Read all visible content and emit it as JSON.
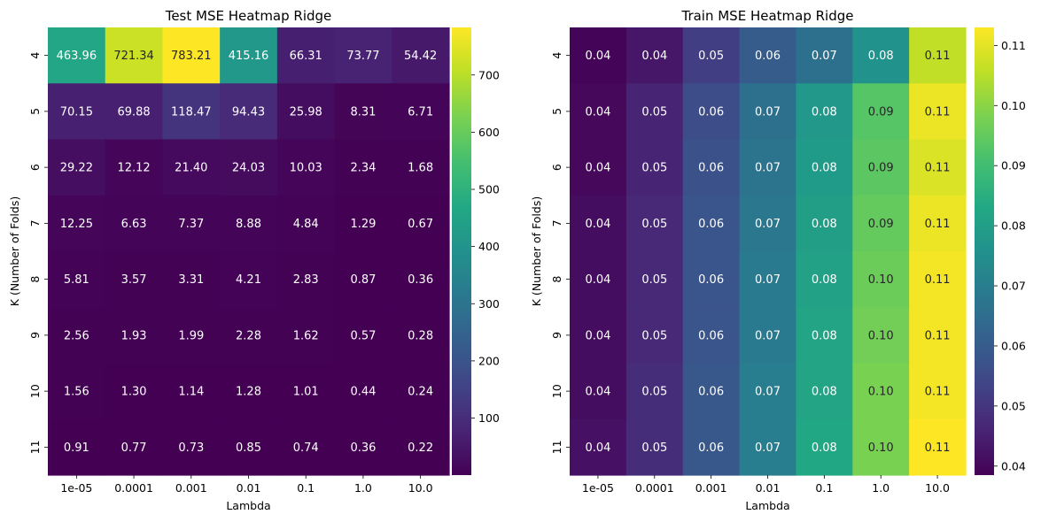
{
  "chart_data": [
    {
      "type": "heatmap",
      "title": "Test MSE Heatmap Ridge",
      "xlabel": "Lambda",
      "ylabel": "K (Number of Folds)",
      "x_categories": [
        "1e-05",
        "0.0001",
        "0.001",
        "0.01",
        "0.1",
        "1.0",
        "10.0"
      ],
      "y_categories": [
        "4",
        "5",
        "6",
        "7",
        "8",
        "9",
        "10",
        "11"
      ],
      "values": [
        [
          463.96,
          721.34,
          783.21,
          415.16,
          66.31,
          73.77,
          54.42
        ],
        [
          70.15,
          69.88,
          118.47,
          94.43,
          25.98,
          8.31,
          6.71
        ],
        [
          29.22,
          12.12,
          21.4,
          24.03,
          10.03,
          2.34,
          1.68
        ],
        [
          12.25,
          6.63,
          7.37,
          8.88,
          4.84,
          1.29,
          0.67
        ],
        [
          5.81,
          3.57,
          3.31,
          4.21,
          2.83,
          0.87,
          0.36
        ],
        [
          2.56,
          1.93,
          1.99,
          2.28,
          1.62,
          0.57,
          0.28
        ],
        [
          1.56,
          1.3,
          1.14,
          1.28,
          1.01,
          0.44,
          0.24
        ],
        [
          0.91,
          0.77,
          0.73,
          0.85,
          0.74,
          0.36,
          0.22
        ]
      ],
      "colormap": "viridis",
      "vmin": 0.22,
      "vmax": 783.21,
      "colorbar_ticks": [
        100,
        200,
        300,
        400,
        500,
        600,
        700
      ],
      "annotation_format": "2 decimals"
    },
    {
      "type": "heatmap",
      "title": "Train MSE Heatmap Ridge",
      "xlabel": "Lambda",
      "ylabel": "K (Number of Folds)",
      "x_categories": [
        "1e-05",
        "0.0001",
        "0.001",
        "0.01",
        "0.1",
        "1.0",
        "10.0"
      ],
      "y_categories": [
        "4",
        "5",
        "6",
        "7",
        "8",
        "9",
        "10",
        "11"
      ],
      "values": [
        [
          0.0392,
          0.043,
          0.052,
          0.06,
          0.066,
          0.076,
          0.106
        ],
        [
          0.04,
          0.046,
          0.056,
          0.066,
          0.078,
          0.093,
          0.111
        ],
        [
          0.04,
          0.046,
          0.057,
          0.067,
          0.079,
          0.094,
          0.109
        ],
        [
          0.041,
          0.047,
          0.058,
          0.068,
          0.08,
          0.095,
          0.111
        ],
        [
          0.041,
          0.047,
          0.058,
          0.069,
          0.081,
          0.096,
          0.112
        ],
        [
          0.041,
          0.047,
          0.058,
          0.069,
          0.082,
          0.097,
          0.112
        ],
        [
          0.041,
          0.048,
          0.059,
          0.07,
          0.082,
          0.098,
          0.112
        ],
        [
          0.042,
          0.048,
          0.059,
          0.07,
          0.083,
          0.098,
          0.113
        ]
      ],
      "labels": [
        [
          "0.04",
          "0.04",
          "0.05",
          "0.06",
          "0.07",
          "0.08",
          "0.11"
        ],
        [
          "0.04",
          "0.05",
          "0.06",
          "0.07",
          "0.08",
          "0.09",
          "0.11"
        ],
        [
          "0.04",
          "0.05",
          "0.06",
          "0.07",
          "0.08",
          "0.09",
          "0.11"
        ],
        [
          "0.04",
          "0.05",
          "0.06",
          "0.07",
          "0.08",
          "0.09",
          "0.11"
        ],
        [
          "0.04",
          "0.05",
          "0.06",
          "0.07",
          "0.08",
          "0.10",
          "0.11"
        ],
        [
          "0.04",
          "0.05",
          "0.06",
          "0.07",
          "0.08",
          "0.10",
          "0.11"
        ],
        [
          "0.04",
          "0.05",
          "0.06",
          "0.07",
          "0.08",
          "0.10",
          "0.11"
        ],
        [
          "0.04",
          "0.05",
          "0.06",
          "0.07",
          "0.08",
          "0.10",
          "0.11"
        ]
      ],
      "colormap": "viridis",
      "vmin": 0.0385,
      "vmax": 0.113,
      "colorbar_ticks": [
        0.04,
        0.05,
        0.06,
        0.07,
        0.08,
        0.09,
        0.1,
        0.11
      ],
      "colorbar_tick_labels": [
        "0.04",
        "0.05",
        "0.06",
        "0.07",
        "0.08",
        "0.09",
        "0.10",
        "0.11"
      ],
      "annotation_format": "2 decimals"
    }
  ]
}
